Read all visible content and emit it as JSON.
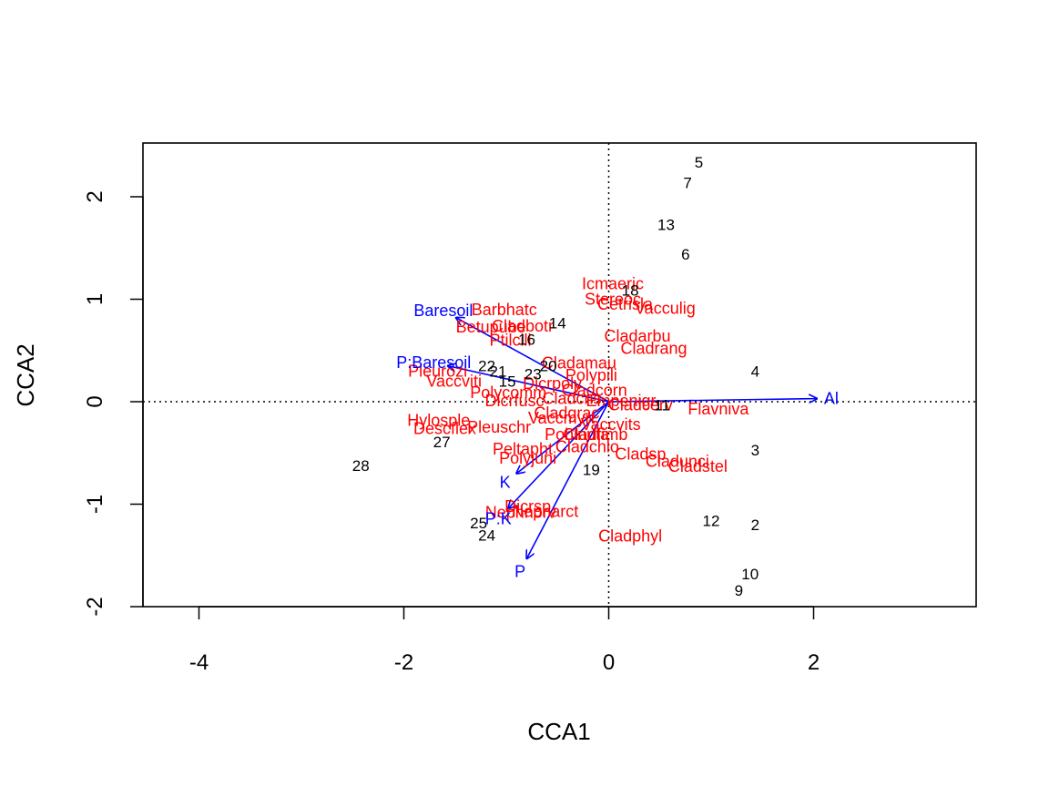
{
  "chart_data": {
    "type": "scatter",
    "title": "",
    "xlabel": "CCA1",
    "ylabel": "CCA2",
    "xlim": [
      -4.5,
      3.6
    ],
    "ylim": [
      -2.0,
      2.5
    ],
    "x_ticks": [
      "-4",
      "-2",
      "0",
      "2"
    ],
    "x_tick_values": [
      -4,
      -2,
      0,
      2
    ],
    "y_ticks": [
      "-2",
      "-1",
      "0",
      "1",
      "2"
    ],
    "y_tick_values": [
      -2,
      -1,
      0,
      1,
      2
    ],
    "reference_lines": {
      "x": 0,
      "y": 0,
      "style": "dotted"
    },
    "colors": {
      "sites": "#000000",
      "species": "#ff0000",
      "env": "#0000ff"
    },
    "sites": [
      {
        "label": "5",
        "x": 0.88,
        "y": 2.34
      },
      {
        "label": "7",
        "x": 0.77,
        "y": 2.14
      },
      {
        "label": "13",
        "x": 0.56,
        "y": 1.73
      },
      {
        "label": "6",
        "x": 0.75,
        "y": 1.44
      },
      {
        "label": "18",
        "x": 0.21,
        "y": 1.09
      },
      {
        "label": "14",
        "x": -0.5,
        "y": 0.77
      },
      {
        "label": "16",
        "x": -0.8,
        "y": 0.61
      },
      {
        "label": "22",
        "x": -1.19,
        "y": 0.35
      },
      {
        "label": "20",
        "x": -0.59,
        "y": 0.35
      },
      {
        "label": "21",
        "x": -1.08,
        "y": 0.3
      },
      {
        "label": "23",
        "x": -0.74,
        "y": 0.27
      },
      {
        "label": "15",
        "x": -0.99,
        "y": 0.2
      },
      {
        "label": "4",
        "x": 1.43,
        "y": 0.3
      },
      {
        "label": "11",
        "x": 0.52,
        "y": -0.03
      },
      {
        "label": "3",
        "x": 1.43,
        "y": -0.47
      },
      {
        "label": "27",
        "x": -1.63,
        "y": -0.39
      },
      {
        "label": "28",
        "x": -2.42,
        "y": -0.62
      },
      {
        "label": "19",
        "x": -0.17,
        "y": -0.66
      },
      {
        "label": "12",
        "x": 1.0,
        "y": -1.16
      },
      {
        "label": "2",
        "x": 1.43,
        "y": -1.2
      },
      {
        "label": "25",
        "x": -1.27,
        "y": -1.18
      },
      {
        "label": "24",
        "x": -1.19,
        "y": -1.3
      },
      {
        "label": "10",
        "x": 1.38,
        "y": -1.68
      },
      {
        "label": "9",
        "x": 1.27,
        "y": -1.84
      }
    ],
    "species": [
      {
        "label": "Icmaeric",
        "x": 0.04,
        "y": 1.15
      },
      {
        "label": "Stereoc",
        "x": 0.04,
        "y": 1.0
      },
      {
        "label": "Cetrisla",
        "x": 0.16,
        "y": 0.95
      },
      {
        "label": "Vacculig",
        "x": 0.55,
        "y": 0.91
      },
      {
        "label": "Barbhatc",
        "x": -1.02,
        "y": 0.9
      },
      {
        "label": "Betupube",
        "x": -1.15,
        "y": 0.73
      },
      {
        "label": "Cladbotr",
        "x": -0.84,
        "y": 0.74
      },
      {
        "label": "Ptilcili",
        "x": -0.96,
        "y": 0.6
      },
      {
        "label": "Cladarbu",
        "x": 0.28,
        "y": 0.64
      },
      {
        "label": "Cladrang",
        "x": 0.44,
        "y": 0.52
      },
      {
        "label": "Cladamau",
        "x": -0.29,
        "y": 0.38
      },
      {
        "label": "Polypili",
        "x": -0.17,
        "y": 0.26
      },
      {
        "label": "Pleurozi",
        "x": -1.67,
        "y": 0.3
      },
      {
        "label": "Vaccviti",
        "x": -1.51,
        "y": 0.2
      },
      {
        "label": "Dicrpoly",
        "x": -0.55,
        "y": 0.18
      },
      {
        "label": "Cladcorn",
        "x": -0.14,
        "y": 0.11
      },
      {
        "label": "Polycomm",
        "x": -0.98,
        "y": 0.09
      },
      {
        "label": "Dicrfusc",
        "x": -0.92,
        "y": 0.01
      },
      {
        "label": "Empenigr",
        "x": 0.12,
        "y": 0.01
      },
      {
        "label": "Cladcerv",
        "x": 0.31,
        "y": -0.03
      },
      {
        "label": "Flavniva",
        "x": 1.07,
        "y": -0.07
      },
      {
        "label": "Hylosple",
        "x": -1.66,
        "y": -0.18
      },
      {
        "label": "Descflex",
        "x": -1.6,
        "y": -0.26
      },
      {
        "label": "Pleuschr",
        "x": -1.07,
        "y": -0.25
      },
      {
        "label": "Vaccmyrt",
        "x": -0.46,
        "y": -0.16
      },
      {
        "label": "Vaccvits",
        "x": 0.02,
        "y": -0.22
      },
      {
        "label": "Polyjuni",
        "x": -0.79,
        "y": -0.55
      },
      {
        "label": "Peltapht",
        "x": -0.84,
        "y": -0.46
      },
      {
        "label": "Cladchlo",
        "x": -0.21,
        "y": -0.44
      },
      {
        "label": "Cladsp",
        "x": 0.31,
        "y": -0.51
      },
      {
        "label": "Cladunci",
        "x": 0.67,
        "y": -0.58
      },
      {
        "label": "Cladstel",
        "x": 0.87,
        "y": -0.63
      },
      {
        "label": "Cladfimb",
        "x": -0.13,
        "y": -0.32
      },
      {
        "label": "Dicrsp",
        "x": -0.79,
        "y": -1.02
      },
      {
        "label": "Nephnorv",
        "x": -0.86,
        "y": -1.08
      },
      {
        "label": "Nepharct",
        "x": -0.62,
        "y": -1.07
      },
      {
        "label": "Cladphyl",
        "x": 0.21,
        "y": -1.31
      },
      {
        "label": "Pohlnuta",
        "x": -0.31,
        "y": -0.32
      },
      {
        "label": "Cladgrac",
        "x": -0.41,
        "y": -0.11
      },
      {
        "label": "Cladcris",
        "x": -0.36,
        "y": 0.03
      }
    ],
    "env": [
      {
        "label": "Baresoil",
        "x": -1.49,
        "y": 0.82
      },
      {
        "label": "P:Baresoil",
        "x": -1.57,
        "y": 0.35
      },
      {
        "label": "Al",
        "x": 2.03,
        "y": 0.03
      },
      {
        "label": "K",
        "x": -0.9,
        "y": -0.7
      },
      {
        "label": "P:K",
        "x": -0.98,
        "y": -1.04
      },
      {
        "label": "P",
        "x": -0.8,
        "y": -1.53
      }
    ]
  }
}
